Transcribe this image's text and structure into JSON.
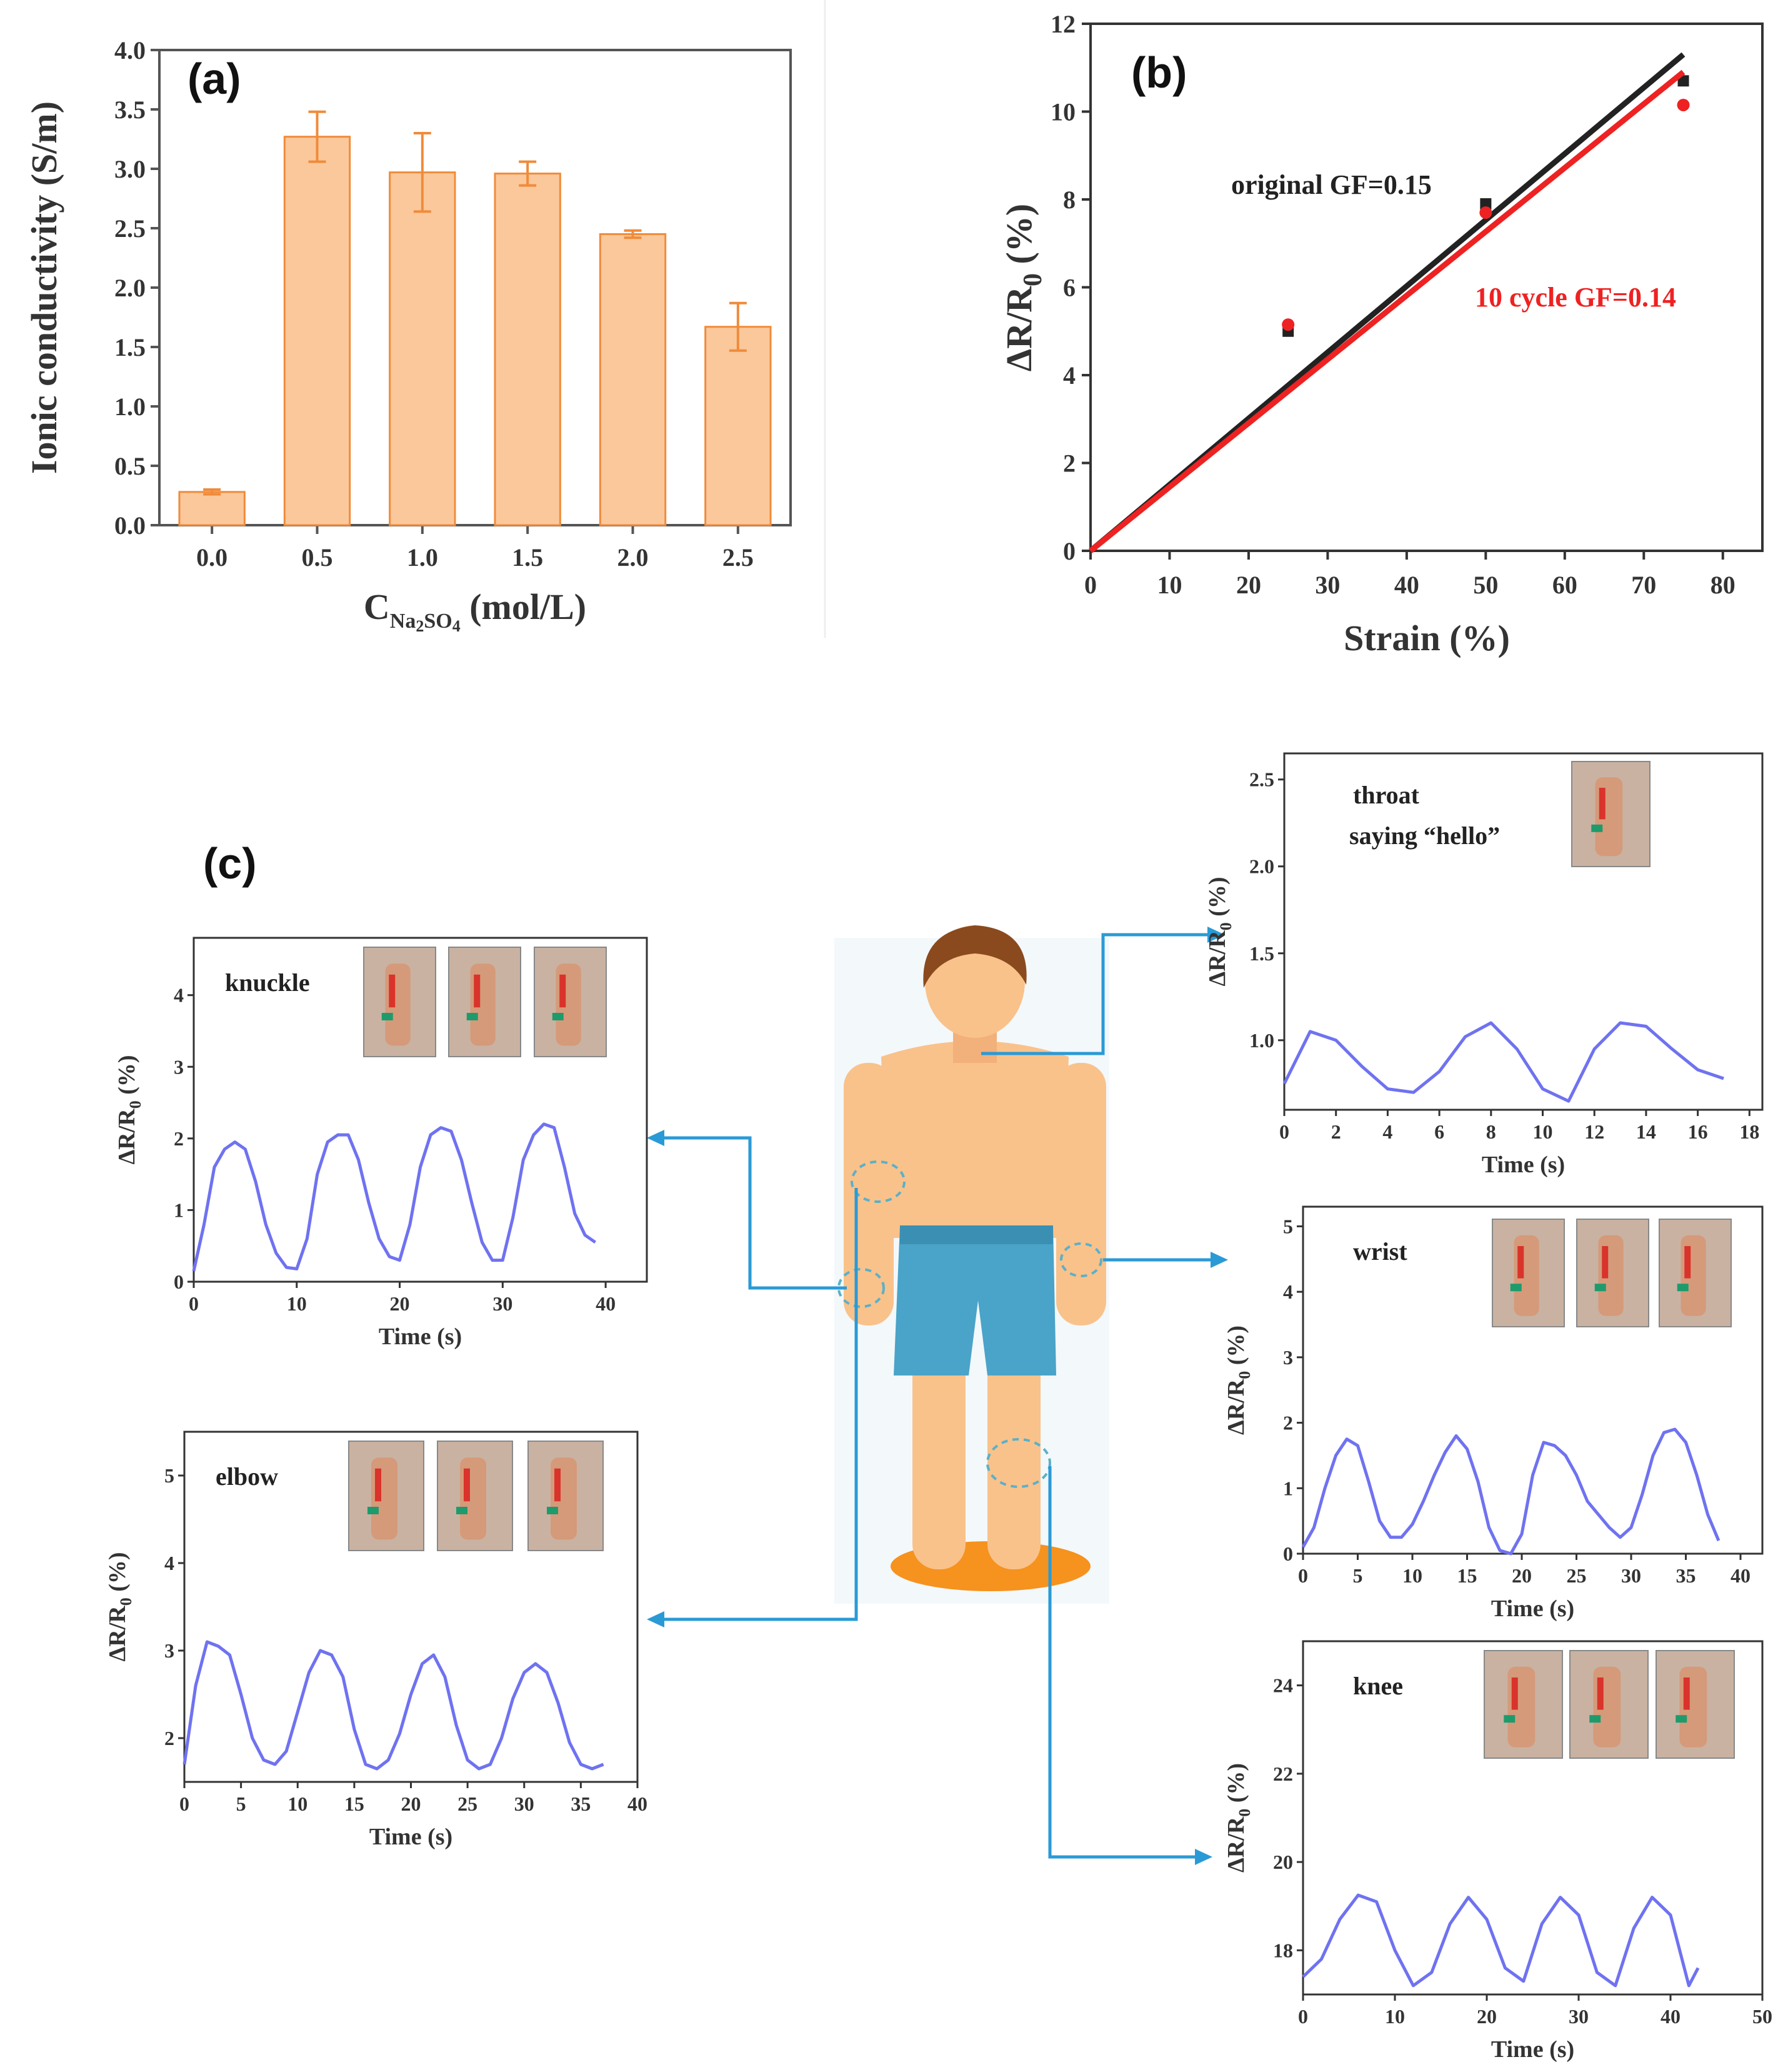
{
  "figure": {
    "colors": {
      "bar_fill": "#fbc89c",
      "bar_edge": "#f08b3a",
      "original": "#222222",
      "cycle": "#ee2222",
      "signal": "#6f72f0",
      "arrow": "#2a9ad6",
      "skin": "#f9c28b",
      "hair": "#8a4a1e",
      "shorts": "#4aa3c8",
      "base": "#f6921e"
    }
  },
  "chart_data": [
    {
      "id": "a",
      "panel_label": "(a)",
      "type": "bar",
      "categories": [
        "0.0",
        "0.5",
        "1.0",
        "1.5",
        "2.0",
        "2.5"
      ],
      "values": [
        0.28,
        3.27,
        2.97,
        2.96,
        2.45,
        1.67
      ],
      "errors": [
        0.02,
        0.21,
        0.33,
        0.1,
        0.03,
        0.2
      ],
      "ylabel": "Ionic conductivity (S/m)",
      "xlabel_main": "C",
      "xlabel_sub1": "Na",
      "xlabel_sub2": "2",
      "xlabel_mid": "SO",
      "xlabel_sub3": "4",
      "xlabel_unit": " (mol/L)",
      "ylim": [
        0,
        4.0
      ],
      "yticks": [
        "0.0",
        "0.5",
        "1.0",
        "1.5",
        "2.0",
        "2.5",
        "3.0",
        "3.5",
        "4.0"
      ]
    },
    {
      "id": "b",
      "panel_label": "(b)",
      "type": "line",
      "xlabel": "Strain (%)",
      "ylabel_main": "ΔR/R",
      "ylabel_sub": "0",
      "ylabel_unit": " (%)",
      "xlim": [
        0,
        85
      ],
      "ylim": [
        0,
        12
      ],
      "xticks": [
        "0",
        "10",
        "20",
        "30",
        "40",
        "50",
        "60",
        "70",
        "80"
      ],
      "yticks": [
        "0",
        "2",
        "4",
        "6",
        "8",
        "10",
        "12"
      ],
      "series": [
        {
          "name": "original GF=0.15",
          "color": "#222222",
          "fit": [
            [
              0,
              0
            ],
            [
              75,
              11.3
            ]
          ],
          "points": [
            [
              25,
              5.0
            ],
            [
              50,
              7.9
            ],
            [
              75,
              10.7
            ]
          ],
          "marker": "square"
        },
        {
          "name": "10 cycle GF=0.14",
          "color": "#ee2222",
          "fit": [
            [
              0,
              0
            ],
            [
              75,
              10.9
            ]
          ],
          "points": [
            [
              25,
              5.15
            ],
            [
              50,
              7.7
            ],
            [
              75,
              10.15
            ]
          ],
          "marker": "circle"
        }
      ]
    },
    {
      "id": "c_throat",
      "type": "line",
      "annotation_1": "throat",
      "annotation_2": "saying “hello”",
      "xlabel": "Time (s)",
      "ylabel_main": "ΔR/R",
      "ylabel_sub": "0",
      "ylabel_unit": " (%)",
      "xlim": [
        0,
        18.5
      ],
      "ylim": [
        0.6,
        2.65
      ],
      "xticks": [
        "0",
        "2",
        "4",
        "6",
        "8",
        "10",
        "12",
        "14",
        "16",
        "18"
      ],
      "yticks": [
        "1.0",
        "1.5",
        "2.0",
        "2.5"
      ],
      "x": [
        0,
        1,
        2,
        3,
        4,
        5,
        6,
        7,
        8,
        9,
        10,
        11,
        12,
        13,
        14,
        15,
        16,
        17
      ],
      "y": [
        0.75,
        1.05,
        1.0,
        0.85,
        0.72,
        0.7,
        0.82,
        1.02,
        1.1,
        0.95,
        0.72,
        0.65,
        0.95,
        1.1,
        1.08,
        0.95,
        0.83,
        0.78
      ]
    },
    {
      "id": "c_knuckle",
      "type": "line",
      "annotation_1": "knuckle",
      "xlabel": "Time (s)",
      "ylabel_main": "ΔR/R",
      "ylabel_sub": "0",
      "ylabel_unit": " (%)",
      "xlim": [
        0,
        44
      ],
      "ylim": [
        0,
        4.8
      ],
      "xticks": [
        "0",
        "10",
        "20",
        "30",
        "40"
      ],
      "yticks": [
        "0",
        "1",
        "2",
        "3",
        "4"
      ],
      "x": [
        0,
        1,
        2,
        3,
        4,
        5,
        6,
        7,
        8,
        9,
        10,
        11,
        12,
        13,
        14,
        15,
        16,
        17,
        18,
        19,
        20,
        21,
        22,
        23,
        24,
        25,
        26,
        27,
        28,
        29,
        30,
        31,
        32,
        33,
        34,
        35,
        36,
        37,
        38,
        39
      ],
      "y": [
        0.15,
        0.8,
        1.6,
        1.85,
        1.95,
        1.85,
        1.4,
        0.8,
        0.4,
        0.2,
        0.18,
        0.6,
        1.5,
        1.95,
        2.05,
        2.05,
        1.7,
        1.1,
        0.6,
        0.35,
        0.3,
        0.8,
        1.6,
        2.05,
        2.15,
        2.1,
        1.7,
        1.1,
        0.55,
        0.3,
        0.3,
        0.9,
        1.7,
        2.05,
        2.2,
        2.15,
        1.6,
        0.95,
        0.65,
        0.55
      ]
    },
    {
      "id": "c_wrist",
      "type": "line",
      "annotation_1": "wrist",
      "xlabel": "Time (s)",
      "ylabel_main": "ΔR/R",
      "ylabel_sub": "0",
      "ylabel_unit": " (%)",
      "xlim": [
        0,
        42
      ],
      "ylim": [
        0,
        5.3
      ],
      "xticks": [
        "0",
        "5",
        "10",
        "15",
        "20",
        "25",
        "30",
        "35",
        "40"
      ],
      "yticks": [
        "0",
        "1",
        "2",
        "3",
        "4",
        "5"
      ],
      "x": [
        0,
        1,
        2,
        3,
        4,
        5,
        6,
        7,
        8,
        9,
        10,
        11,
        12,
        13,
        14,
        15,
        16,
        17,
        18,
        19,
        20,
        21,
        22,
        23,
        24,
        25,
        26,
        27,
        28,
        29,
        30,
        31,
        32,
        33,
        34,
        35,
        36,
        37,
        38
      ],
      "y": [
        0.1,
        0.4,
        1.0,
        1.5,
        1.75,
        1.65,
        1.1,
        0.5,
        0.25,
        0.25,
        0.45,
        0.8,
        1.2,
        1.55,
        1.8,
        1.6,
        1.1,
        0.4,
        0.05,
        -0.1,
        0.3,
        1.2,
        1.7,
        1.65,
        1.5,
        1.2,
        0.8,
        0.6,
        0.4,
        0.25,
        0.4,
        0.9,
        1.5,
        1.85,
        1.9,
        1.7,
        1.2,
        0.6,
        0.2
      ]
    },
    {
      "id": "c_elbow",
      "type": "line",
      "annotation_1": "elbow",
      "xlabel": "Time (s)",
      "ylabel_main": "ΔR/R",
      "ylabel_sub": "0",
      "ylabel_unit": " (%)",
      "xlim": [
        0,
        40
      ],
      "ylim": [
        1.5,
        5.5
      ],
      "xticks": [
        "0",
        "5",
        "10",
        "15",
        "20",
        "25",
        "30",
        "35",
        "40"
      ],
      "yticks": [
        "2",
        "3",
        "4",
        "5"
      ],
      "x": [
        0,
        1,
        2,
        3,
        4,
        5,
        6,
        7,
        8,
        9,
        10,
        11,
        12,
        13,
        14,
        15,
        16,
        17,
        18,
        19,
        20,
        21,
        22,
        23,
        24,
        25,
        26,
        27,
        28,
        29,
        30,
        31,
        32,
        33,
        34,
        35,
        36,
        37
      ],
      "y": [
        1.7,
        2.6,
        3.1,
        3.05,
        2.95,
        2.5,
        2.0,
        1.75,
        1.7,
        1.85,
        2.3,
        2.75,
        3.0,
        2.95,
        2.7,
        2.1,
        1.7,
        1.65,
        1.75,
        2.05,
        2.5,
        2.85,
        2.95,
        2.7,
        2.15,
        1.75,
        1.65,
        1.7,
        2.0,
        2.45,
        2.75,
        2.85,
        2.75,
        2.4,
        1.95,
        1.7,
        1.65,
        1.7
      ]
    },
    {
      "id": "c_knee",
      "type": "line",
      "annotation_1": "knee",
      "xlabel": "Time (s)",
      "ylabel_main": "ΔR/R",
      "ylabel_sub": "0",
      "ylabel_unit": " (%)",
      "xlim": [
        0,
        50
      ],
      "ylim": [
        17,
        25
      ],
      "xticks": [
        "0",
        "10",
        "20",
        "30",
        "40",
        "50"
      ],
      "yticks": [
        "18",
        "20",
        "22",
        "24"
      ],
      "x": [
        0,
        2,
        4,
        6,
        8,
        10,
        12,
        14,
        16,
        18,
        20,
        22,
        24,
        26,
        28,
        30,
        32,
        34,
        36,
        38,
        40,
        42,
        43
      ],
      "y": [
        17.4,
        17.8,
        18.7,
        19.25,
        19.1,
        18.0,
        17.2,
        17.5,
        18.6,
        19.2,
        18.7,
        17.6,
        17.3,
        18.6,
        19.2,
        18.8,
        17.5,
        17.2,
        18.5,
        19.2,
        18.8,
        17.2,
        17.6
      ]
    }
  ],
  "panel_c_label": "(c)"
}
